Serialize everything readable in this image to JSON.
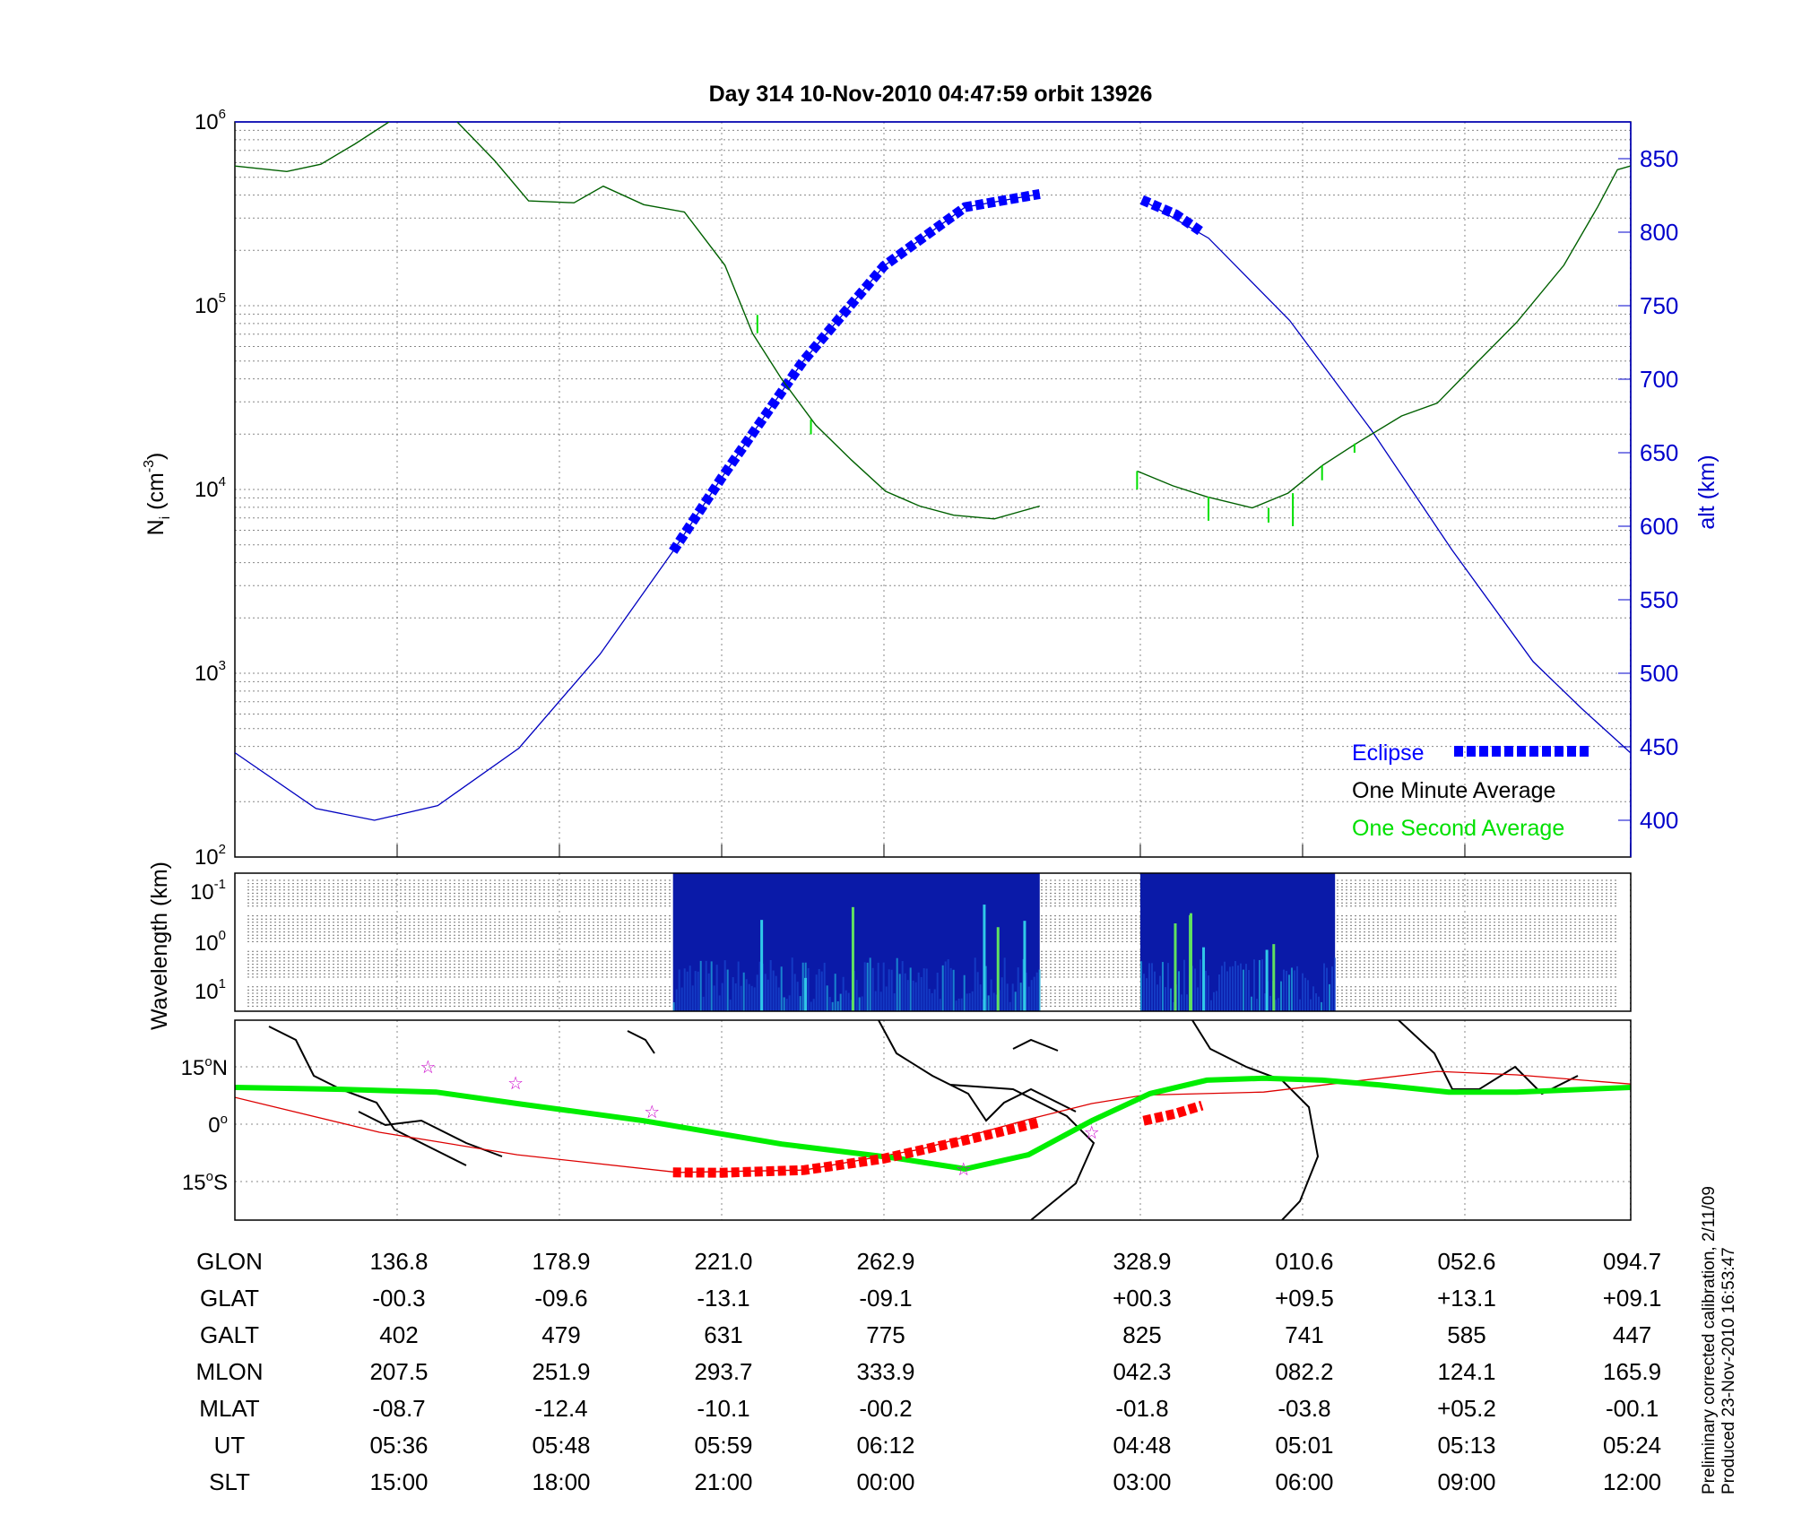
{
  "chart_data": [
    {
      "type": "line",
      "title": "Day 314  10-Nov-2010 04:47:59   orbit 13926",
      "ylabel": {
        "base": "N",
        "sub": "i",
        "rest": " (cm",
        "exp": "-3",
        "close": ")"
      },
      "ylabel_right": "alt (km)",
      "xlim_index": [
        0,
        8.6
      ],
      "ylim_log10": [
        2,
        6
      ],
      "ylim_right": [
        375,
        875
      ],
      "grid": true,
      "y_ticks_left": [
        {
          "base": "10",
          "exp": "6",
          "v": 6
        },
        {
          "base": "10",
          "exp": "5",
          "v": 5
        },
        {
          "base": "10",
          "exp": "4",
          "v": 4
        },
        {
          "base": "10",
          "exp": "3",
          "v": 3
        },
        {
          "base": "10",
          "exp": "2",
          "v": 2
        }
      ],
      "y_ticks_right": [
        "850",
        "800",
        "750",
        "700",
        "650",
        "600",
        "550",
        "500",
        "450",
        "400"
      ],
      "x_tick_index": [
        1,
        2,
        3,
        4,
        5.58,
        6.58,
        7.58,
        8.6
      ],
      "legend": {
        "placement": "bottom-right",
        "entries": [
          {
            "label": "Eclipse",
            "color": "#0000ff"
          },
          {
            "label": "One Minute Average",
            "color": "#000000"
          },
          {
            "label": "One Second Average",
            "color": "#00e000"
          }
        ]
      },
      "series": [
        {
          "name": "Altitude",
          "axis": "right",
          "color": "#0000c0",
          "segments": [
            [
              [
                0,
                446
              ],
              [
                0.5,
                408
              ],
              [
                0.86,
                400
              ],
              [
                1.25,
                410
              ],
              [
                1.75,
                449
              ],
              [
                2.25,
                513
              ],
              [
                2.7,
                583
              ],
              [
                3.0,
                633
              ],
              [
                3.5,
                712
              ],
              [
                4.0,
                777
              ],
              [
                4.5,
                817
              ],
              [
                4.96,
                826
              ]
            ],
            [
              [
                5.59,
                822
              ],
              [
                6.0,
                796
              ],
              [
                6.5,
                740
              ],
              [
                7.0,
                666
              ],
              [
                7.5,
                584
              ],
              [
                8.0,
                508
              ],
              [
                8.3,
                476
              ],
              [
                8.6,
                446
              ]
            ]
          ]
        },
        {
          "name": "Eclipse",
          "axis": "right",
          "color": "#0000ff",
          "segments": [
            [
              [
                2.7,
                583
              ],
              [
                3.0,
                633
              ],
              [
                3.5,
                712
              ],
              [
                4.0,
                777
              ],
              [
                4.5,
                817
              ],
              [
                4.96,
                826
              ]
            ],
            [
              [
                5.59,
                822
              ],
              [
                5.8,
                812
              ],
              [
                5.96,
                800
              ]
            ]
          ]
        },
        {
          "name": "One Minute Average",
          "axis": "left_log10",
          "color": "#006000",
          "segments": [
            [
              [
                0,
                5.76
              ],
              [
                0.32,
                5.73
              ],
              [
                0.53,
                5.77
              ],
              [
                0.74,
                5.88
              ],
              [
                0.95,
                6.0
              ]
            ],
            [
              [
                1.37,
                6.0
              ],
              [
                1.6,
                5.79
              ],
              [
                1.81,
                5.57
              ],
              [
                2.09,
                5.56
              ],
              [
                2.27,
                5.65
              ],
              [
                2.52,
                5.55
              ],
              [
                2.77,
                5.51
              ],
              [
                3.02,
                5.22
              ],
              [
                3.19,
                4.85
              ],
              [
                3.37,
                4.6
              ],
              [
                3.58,
                4.35
              ],
              [
                3.8,
                4.16
              ],
              [
                4.01,
                3.99
              ],
              [
                4.22,
                3.91
              ],
              [
                4.43,
                3.86
              ],
              [
                4.68,
                3.84
              ],
              [
                4.96,
                3.91
              ]
            ],
            [
              [
                5.56,
                4.1
              ],
              [
                5.78,
                4.02
              ],
              [
                5.99,
                3.96
              ],
              [
                6.27,
                3.9
              ],
              [
                6.49,
                3.98
              ],
              [
                6.7,
                4.13
              ],
              [
                6.91,
                4.25
              ],
              [
                7.19,
                4.4
              ],
              [
                7.41,
                4.47
              ],
              [
                7.62,
                4.66
              ],
              [
                7.9,
                4.91
              ],
              [
                8.19,
                5.22
              ],
              [
                8.4,
                5.54
              ],
              [
                8.52,
                5.74
              ],
              [
                8.6,
                5.76
              ]
            ]
          ]
        },
        {
          "name": "One Second Average",
          "axis": "left_log10",
          "color": "#00e000",
          "spikes": [
            [
              3.22,
              4.85,
              4.95
            ],
            [
              3.55,
              4.38,
              4.3
            ],
            [
              5.56,
              4.1,
              4.0
            ],
            [
              6.0,
              3.96,
              3.83
            ],
            [
              6.37,
              3.9,
              3.82
            ],
            [
              6.52,
              3.98,
              3.8
            ],
            [
              6.7,
              4.13,
              4.05
            ],
            [
              6.9,
              4.25,
              4.2
            ]
          ]
        }
      ]
    },
    {
      "type": "heatmap",
      "ylabel": "Wavelength (km)",
      "y_ticks": [
        {
          "base": "10",
          "exp": "-1"
        },
        {
          "base": "10",
          "exp": "0"
        },
        {
          "base": "10",
          "exp": "1"
        }
      ],
      "data_ranges_index": [
        [
          2.7,
          4.96
        ],
        [
          5.58,
          6.78
        ]
      ]
    },
    {
      "type": "line",
      "name": "Ground track map",
      "y_ticks": [
        {
          "deg": "15",
          "sym": "o",
          "hem": "N",
          "lat": 15
        },
        {
          "deg": "0",
          "sym": "o",
          "hem": "",
          "lat": 0
        },
        {
          "deg": "15",
          "sym": "o",
          "hem": "S",
          "lat": -15
        }
      ],
      "series": [
        {
          "name": "Magnetic equator",
          "color": "#00ee00",
          "points": [
            [
              0,
              9.6
            ],
            [
              0.68,
              9.1
            ],
            [
              1.24,
              8.4
            ],
            [
              1.74,
              5.4
            ],
            [
              2.52,
              0.9
            ],
            [
              3.37,
              -5.2
            ],
            [
              4.08,
              -8.9
            ],
            [
              4.5,
              -11.7
            ],
            [
              4.89,
              -8.0
            ],
            [
              5.28,
              0.9
            ],
            [
              5.64,
              8.0
            ],
            [
              5.99,
              11.5
            ],
            [
              6.34,
              12.0
            ],
            [
              6.7,
              11.5
            ],
            [
              7.05,
              10.3
            ],
            [
              7.48,
              8.4
            ],
            [
              7.9,
              8.4
            ],
            [
              8.6,
              9.6
            ]
          ]
        },
        {
          "name": "Orbit track",
          "color": "#dd0000",
          "points": [
            [
              0,
              7.0
            ],
            [
              0.89,
              -2.1
            ],
            [
              1.74,
              -8.0
            ],
            [
              2.73,
              -12.6
            ],
            [
              3.51,
              -12.0
            ],
            [
              4.22,
              -6.6
            ],
            [
              4.92,
              1.6
            ],
            [
              5.28,
              5.4
            ],
            [
              5.6,
              7.6
            ],
            [
              6.34,
              8.4
            ],
            [
              7.41,
              13.8
            ],
            [
              7.9,
              12.9
            ],
            [
              8.6,
              10.5
            ]
          ]
        },
        {
          "name": "Eclipse track",
          "color": "#ff0000",
          "segments": [
            [
              [
                2.7,
                -12.6
              ],
              [
                3.0,
                -12.7
              ],
              [
                3.51,
                -12.0
              ],
              [
                4.0,
                -9.0
              ],
              [
                4.5,
                -4.2
              ],
              [
                4.96,
                0.5
              ]
            ],
            [
              [
                5.6,
                0.9
              ],
              [
                5.8,
                2.8
              ],
              [
                5.96,
                4.9
              ]
            ]
          ]
        },
        {
          "name": "Stars",
          "color": "#cc00cc",
          "points": [
            [
              1.19,
              15.0
            ],
            [
              1.73,
              10.8
            ],
            [
              2.57,
              3.3
            ],
            [
              4.49,
              -11.7
            ],
            [
              5.28,
              -2.1
            ]
          ]
        }
      ]
    }
  ],
  "table": {
    "rows": [
      {
        "label": "GLON",
        "values": [
          "136.8",
          "178.9",
          "221.0",
          "262.9",
          "328.9",
          "010.6",
          "052.6",
          "094.7"
        ]
      },
      {
        "label": "GLAT",
        "values": [
          "-00.3",
          "-09.6",
          "-13.1",
          "-09.1",
          "+00.3",
          "+09.5",
          "+13.1",
          "+09.1"
        ]
      },
      {
        "label": "GALT",
        "values": [
          "402",
          "479",
          "631",
          "775",
          "825",
          "741",
          "585",
          "447"
        ]
      },
      {
        "label": "MLON",
        "values": [
          "207.5",
          "251.9",
          "293.7",
          "333.9",
          "042.3",
          "082.2",
          "124.1",
          "165.9"
        ]
      },
      {
        "label": "MLAT",
        "values": [
          "-08.7",
          "-12.4",
          "-10.1",
          "-00.2",
          "-01.8",
          "-03.8",
          "+05.2",
          "-00.1"
        ]
      },
      {
        "label": "UT",
        "values": [
          "05:36",
          "05:48",
          "05:59",
          "06:12",
          "04:48",
          "05:01",
          "05:13",
          "05:24"
        ]
      },
      {
        "label": "SLT",
        "values": [
          "15:00",
          "18:00",
          "21:00",
          "00:00",
          "03:00",
          "06:00",
          "09:00",
          "12:00"
        ]
      }
    ]
  },
  "footnote": {
    "line1": "Preliminary corrected calibration, 2/11/09",
    "line2": "Produced 23-Nov-2010 16:53:47"
  }
}
